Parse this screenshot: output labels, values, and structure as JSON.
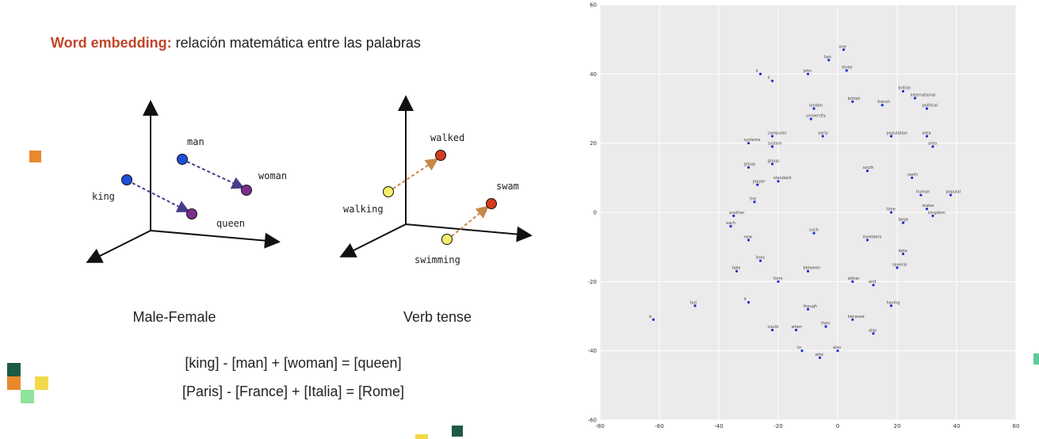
{
  "slide": {
    "title_highlight": "Word embedding:",
    "title_rest": " relación matemática entre las palabras",
    "caption_left": "Male-Female",
    "caption_right": "Verb tense",
    "equation_1": "[king] - [man] + [woman] = [queen]",
    "equation_2": "[Paris] - [France] + [Italia] = [Rome]"
  },
  "diagram_male_female": {
    "labels": {
      "king": "king",
      "man": "man",
      "woman": "woman",
      "queen": "queen"
    },
    "colors": {
      "blue": "#1f4fd8",
      "purple": "#7a2f8f",
      "arrow": "#4a3a8a"
    }
  },
  "diagram_verb_tense": {
    "labels": {
      "walking": "walking",
      "walked": "walked",
      "swimming": "swimming",
      "swam": "swam"
    },
    "colors": {
      "yellow": "#f4ef6a",
      "red": "#d23a1f",
      "arrow": "#c8874a"
    }
  },
  "decor_colors": {
    "orange": "#e8892b",
    "dark_green": "#1f5a47",
    "yellow": "#f2d94a",
    "light_green": "#8fe39a",
    "teal": "#5cc99a"
  },
  "chart_data": {
    "type": "scatter",
    "title": "",
    "xlim": [
      -80,
      60
    ],
    "ylim": [
      -60,
      60
    ],
    "xticks": [
      "-80",
      "-60",
      "-40",
      "-20",
      "0",
      "20",
      "40",
      "60"
    ],
    "yticks": [
      "60",
      "40",
      "20",
      "0",
      "-20",
      "-40",
      "-60"
    ],
    "grid": true,
    "point_color": "#1a2fd0",
    "background": "#ebebeb",
    "points": [
      {
        "x": 2,
        "y": 47,
        "label": "one"
      },
      {
        "x": -3,
        "y": 44,
        "label": "two"
      },
      {
        "x": -26,
        "y": 40,
        "label": "ii"
      },
      {
        "x": -22,
        "y": 38,
        "label": "ii"
      },
      {
        "x": -10,
        "y": 40,
        "label": "john"
      },
      {
        "x": 3,
        "y": 41,
        "label": "three"
      },
      {
        "x": 22,
        "y": 35,
        "label": "british"
      },
      {
        "x": 26,
        "y": 33,
        "label": "international"
      },
      {
        "x": 30,
        "y": 30,
        "label": "political"
      },
      {
        "x": -9,
        "y": 27,
        "label": "university"
      },
      {
        "x": -8,
        "y": 30,
        "label": "london"
      },
      {
        "x": 5,
        "y": 32,
        "label": "british"
      },
      {
        "x": 15,
        "y": 31,
        "label": "french"
      },
      {
        "x": -22,
        "y": 22,
        "label": "computer"
      },
      {
        "x": -30,
        "y": 20,
        "label": "systems"
      },
      {
        "x": -22,
        "y": 19,
        "label": "system"
      },
      {
        "x": -5,
        "y": 22,
        "label": "early"
      },
      {
        "x": 18,
        "y": 22,
        "label": "population"
      },
      {
        "x": 30,
        "y": 22,
        "label": "area"
      },
      {
        "x": 32,
        "y": 19,
        "label": "area"
      },
      {
        "x": -30,
        "y": 13,
        "label": "group"
      },
      {
        "x": -22,
        "y": 14,
        "label": "group"
      },
      {
        "x": 10,
        "y": 12,
        "label": "south"
      },
      {
        "x": 25,
        "y": 10,
        "label": "north"
      },
      {
        "x": -27,
        "y": 8,
        "label": "player"
      },
      {
        "x": -20,
        "y": 9,
        "label": "standard"
      },
      {
        "x": 28,
        "y": 5,
        "label": "human"
      },
      {
        "x": 38,
        "y": 5,
        "label": "popular"
      },
      {
        "x": -28,
        "y": 3,
        "label": "the"
      },
      {
        "x": 30,
        "y": 1,
        "label": "states"
      },
      {
        "x": 32,
        "y": -1,
        "label": "kingdom"
      },
      {
        "x": -35,
        "y": -1,
        "label": "another"
      },
      {
        "x": -36,
        "y": -4,
        "label": "each"
      },
      {
        "x": 18,
        "y": 0,
        "label": "time"
      },
      {
        "x": 22,
        "y": -3,
        "label": "large"
      },
      {
        "x": -8,
        "y": -6,
        "label": "such"
      },
      {
        "x": -30,
        "y": -8,
        "label": "new"
      },
      {
        "x": 10,
        "y": -8,
        "label": "members"
      },
      {
        "x": -26,
        "y": -14,
        "label": "links"
      },
      {
        "x": -34,
        "y": -17,
        "label": "take"
      },
      {
        "x": -10,
        "y": -17,
        "label": "between"
      },
      {
        "x": 20,
        "y": -16,
        "label": "several"
      },
      {
        "x": 22,
        "y": -12,
        "label": "data"
      },
      {
        "x": -20,
        "y": -20,
        "label": "form"
      },
      {
        "x": 5,
        "y": -20,
        "label": "either"
      },
      {
        "x": 12,
        "y": -21,
        "label": "and"
      },
      {
        "x": -48,
        "y": -27,
        "label": "but"
      },
      {
        "x": -30,
        "y": -26,
        "label": "it"
      },
      {
        "x": -62,
        "y": -31,
        "label": "is"
      },
      {
        "x": -10,
        "y": -28,
        "label": "though"
      },
      {
        "x": 18,
        "y": -27,
        "label": "having"
      },
      {
        "x": -22,
        "y": -34,
        "label": "could"
      },
      {
        "x": -14,
        "y": -34,
        "label": "when"
      },
      {
        "x": -4,
        "y": -33,
        "label": "then"
      },
      {
        "x": 5,
        "y": -31,
        "label": "because"
      },
      {
        "x": 12,
        "y": -35,
        "label": "also"
      },
      {
        "x": -12,
        "y": -40,
        "label": "to"
      },
      {
        "x": -6,
        "y": -42,
        "label": "who"
      },
      {
        "x": 0,
        "y": -40,
        "label": "also"
      }
    ]
  }
}
